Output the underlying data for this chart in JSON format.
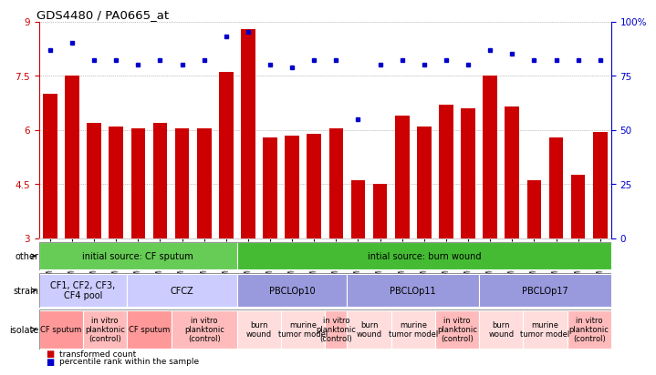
{
  "title": "GDS4480 / PA0665_at",
  "samples": [
    "GSM637589",
    "GSM637590",
    "GSM637579",
    "GSM637580",
    "GSM637591",
    "GSM637592",
    "GSM637581",
    "GSM637582",
    "GSM637583",
    "GSM637584",
    "GSM637593",
    "GSM637594",
    "GSM637573",
    "GSM637574",
    "GSM637585",
    "GSM637586",
    "GSM637595",
    "GSM637596",
    "GSM637575",
    "GSM637576",
    "GSM637587",
    "GSM637588",
    "GSM637597",
    "GSM637598",
    "GSM637577",
    "GSM637578"
  ],
  "bar_values": [
    7.0,
    7.5,
    6.2,
    6.1,
    6.05,
    6.2,
    6.05,
    6.05,
    7.6,
    8.8,
    5.8,
    5.85,
    5.9,
    6.05,
    4.6,
    4.5,
    6.4,
    6.1,
    6.7,
    6.6,
    7.5,
    6.65,
    4.6,
    5.8,
    4.75,
    5.95
  ],
  "dot_values": [
    87,
    90,
    82,
    82,
    80,
    82,
    80,
    82,
    93,
    95,
    80,
    79,
    82,
    82,
    55,
    80,
    82,
    80,
    82,
    80,
    87,
    85,
    82,
    82,
    82,
    82
  ],
  "ymin": 3,
  "ymax": 9,
  "yticks": [
    3,
    4.5,
    6,
    7.5,
    9
  ],
  "ytick_labels_left": [
    "3",
    "4.5",
    "6",
    "7.5",
    "9"
  ],
  "yticks_right": [
    0,
    25,
    50,
    75,
    100
  ],
  "ytick_labels_right": [
    "0",
    "25",
    "50",
    "75",
    "100%"
  ],
  "bar_color": "#cc0000",
  "dot_color": "#0000cc",
  "grid_color": "#888888",
  "bar_width": 0.65,
  "other_sections": [
    {
      "label": "initial source: CF sputum",
      "start": 0,
      "end": 9,
      "color": "#66cc55"
    },
    {
      "label": "intial source: burn wound",
      "start": 9,
      "end": 26,
      "color": "#44bb33"
    }
  ],
  "strain_sections": [
    {
      "label": "CF1, CF2, CF3,\nCF4 pool",
      "start": 0,
      "end": 4,
      "color": "#ccccff"
    },
    {
      "label": "CFCZ",
      "start": 4,
      "end": 9,
      "color": "#ccccff"
    },
    {
      "label": "PBCLOp10",
      "start": 9,
      "end": 14,
      "color": "#9999dd"
    },
    {
      "label": "PBCLOp11",
      "start": 14,
      "end": 20,
      "color": "#9999dd"
    },
    {
      "label": "PBCLOp17",
      "start": 20,
      "end": 26,
      "color": "#9999dd"
    }
  ],
  "isolate_sections": [
    {
      "label": "CF sputum",
      "start": 0,
      "end": 2,
      "color": "#ff9999"
    },
    {
      "label": "in vitro\nplanktonic\n(control)",
      "start": 2,
      "end": 4,
      "color": "#ffbbbb"
    },
    {
      "label": "CF sputum",
      "start": 4,
      "end": 6,
      "color": "#ff9999"
    },
    {
      "label": "in vitro\nplanktonic\n(control)",
      "start": 6,
      "end": 9,
      "color": "#ffbbbb"
    },
    {
      "label": "burn\nwound",
      "start": 9,
      "end": 11,
      "color": "#ffdddd"
    },
    {
      "label": "murine\ntumor model",
      "start": 11,
      "end": 13,
      "color": "#ffdddd"
    },
    {
      "label": "in vitro\nplanktonic\n(control)",
      "start": 13,
      "end": 14,
      "color": "#ffbbbb"
    },
    {
      "label": "burn\nwound",
      "start": 14,
      "end": 16,
      "color": "#ffdddd"
    },
    {
      "label": "murine\ntumor model",
      "start": 16,
      "end": 18,
      "color": "#ffdddd"
    },
    {
      "label": "in vitro\nplanktonic\n(control)",
      "start": 18,
      "end": 20,
      "color": "#ffbbbb"
    },
    {
      "label": "burn\nwound",
      "start": 20,
      "end": 22,
      "color": "#ffdddd"
    },
    {
      "label": "murine\ntumor model",
      "start": 22,
      "end": 24,
      "color": "#ffdddd"
    },
    {
      "label": "in vitro\nplanktonic\n(control)",
      "start": 24,
      "end": 26,
      "color": "#ffbbbb"
    }
  ],
  "row_labels": [
    "other",
    "strain",
    "isolate"
  ],
  "legend_items": [
    {
      "label": "transformed count",
      "color": "#cc0000"
    },
    {
      "label": "percentile rank within the sample",
      "color": "#0000cc"
    }
  ]
}
